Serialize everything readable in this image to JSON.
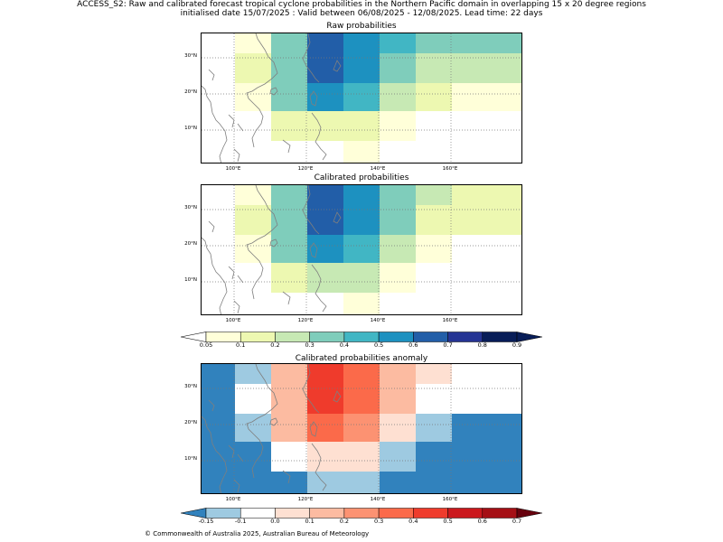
{
  "title_line1": "ACCESS_S2: Raw and calibrated forecast tropical cyclone probabilities in the Northern Pacific domain in overlapping 15 x 20 degree regions",
  "title_line2": "initialised date 15/07/2025 :  Valid between 06/08/2025 - 12/08/2025. Lead time: 22 days",
  "panels": [
    {
      "title": "Raw probabilities"
    },
    {
      "title": "Calibrated probabilities"
    },
    {
      "title": "Calibrated probabilities anomaly"
    }
  ],
  "lat_labels": [
    "30°N",
    "20°N",
    "10°N"
  ],
  "lon_labels": [
    "100°E",
    "120°E",
    "140°E",
    "160°E"
  ],
  "colorbar_prob": {
    "ticks": [
      "0.05",
      "0.1",
      "0.2",
      "0.3",
      "0.4",
      "0.5",
      "0.6",
      "0.7",
      "0.8",
      "0.9"
    ],
    "colors": [
      "#ffffd9",
      "#edf8b1",
      "#c7e9b4",
      "#7fcdbb",
      "#41b6c4",
      "#1d91c0",
      "#225ea8",
      "#253494",
      "#081d58"
    ],
    "under_color": "#ffffff",
    "over_color": "#081d58"
  },
  "colorbar_anom": {
    "ticks": [
      "-0.15",
      "-0.1",
      "0.0",
      "0.1",
      "0.2",
      "0.3",
      "0.4",
      "0.5",
      "0.6",
      "0.7"
    ],
    "colors": [
      "#9ecae1",
      "#ffffff",
      "#fee0d2",
      "#fcbba1",
      "#fc9272",
      "#fb6a4a",
      "#ef3b2c",
      "#cb181d",
      "#a50f15"
    ],
    "under_color": "#3182bd",
    "over_color": "#67000d"
  },
  "copyright": "© Commonwealth of Australia 2025, Australian Bureau of Meteorology"
}
